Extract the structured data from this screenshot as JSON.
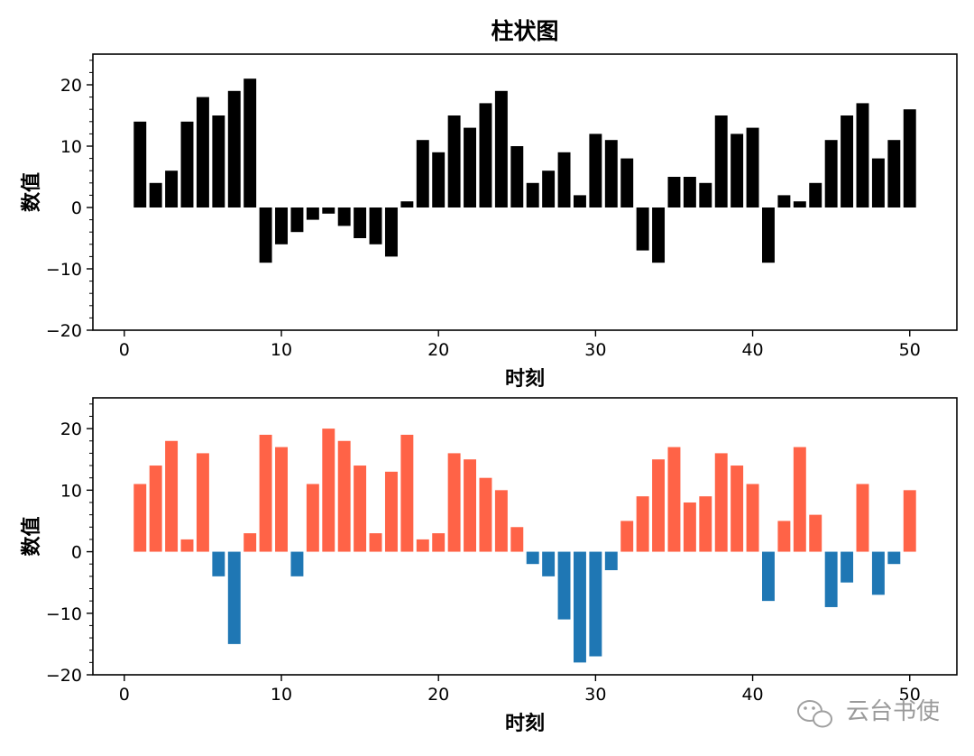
{
  "chart_data": [
    {
      "type": "bar",
      "title": "柱状图",
      "xlabel": "时刻",
      "ylabel": "数值",
      "xlim": [
        -2,
        53
      ],
      "ylim": [
        -20,
        25
      ],
      "xticks": [
        0,
        10,
        20,
        30,
        40,
        50
      ],
      "yticks": [
        -20,
        -10,
        0,
        10,
        20
      ],
      "xtick_labels": [
        "0",
        "10",
        "20",
        "30",
        "40",
        "50"
      ],
      "ytick_labels": [
        "−20",
        "−10",
        "0",
        "10",
        "20"
      ],
      "bar_color": "#000000",
      "x": [
        1,
        2,
        3,
        4,
        5,
        6,
        7,
        8,
        9,
        10,
        11,
        12,
        13,
        14,
        15,
        16,
        17,
        18,
        19,
        20,
        21,
        22,
        23,
        24,
        25,
        26,
        27,
        28,
        29,
        30,
        31,
        32,
        33,
        34,
        35,
        36,
        37,
        38,
        39,
        40,
        41,
        42,
        43,
        44,
        45,
        46,
        47,
        48,
        49,
        50
      ],
      "values": [
        14,
        4,
        6,
        14,
        18,
        15,
        19,
        21,
        -9,
        -6,
        -4,
        -2,
        -1,
        -3,
        -5,
        -6,
        -8,
        1,
        11,
        9,
        15,
        13,
        17,
        19,
        10,
        4,
        6,
        9,
        2,
        12,
        11,
        8,
        -7,
        -9,
        5,
        5,
        4,
        15,
        12,
        13,
        -9,
        2,
        1,
        4,
        11,
        15,
        17,
        8,
        11,
        16
      ]
    },
    {
      "type": "bar",
      "title": "",
      "xlabel": "时刻",
      "ylabel": "数值",
      "xlim": [
        -2,
        53
      ],
      "ylim": [
        -20,
        25
      ],
      "xticks": [
        0,
        10,
        20,
        30,
        40,
        50
      ],
      "yticks": [
        -20,
        -10,
        0,
        10,
        20
      ],
      "xtick_labels": [
        "0",
        "10",
        "20",
        "30",
        "40",
        "50"
      ],
      "ytick_labels": [
        "−20",
        "−10",
        "0",
        "10",
        "20"
      ],
      "positive_color": "#ff6347",
      "negative_color": "#1f77b4",
      "x": [
        1,
        2,
        3,
        4,
        5,
        6,
        7,
        8,
        9,
        10,
        11,
        12,
        13,
        14,
        15,
        16,
        17,
        18,
        19,
        20,
        21,
        22,
        23,
        24,
        25,
        26,
        27,
        28,
        29,
        30,
        31,
        32,
        33,
        34,
        35,
        36,
        37,
        38,
        39,
        40,
        41,
        42,
        43,
        44,
        45,
        46,
        47,
        48,
        49,
        50
      ],
      "values": [
        11,
        14,
        18,
        2,
        16,
        -4,
        -15,
        3,
        19,
        17,
        -4,
        11,
        20,
        18,
        14,
        3,
        13,
        19,
        2,
        3,
        16,
        15,
        12,
        10,
        4,
        -2,
        -4,
        -11,
        -18,
        -17,
        -3,
        5,
        9,
        15,
        17,
        8,
        9,
        16,
        14,
        11,
        -8,
        5,
        17,
        6,
        -9,
        -5,
        11,
        -7,
        -2,
        10
      ]
    }
  ],
  "watermark": {
    "text": "云台书使",
    "icon": "wechat-icon"
  }
}
